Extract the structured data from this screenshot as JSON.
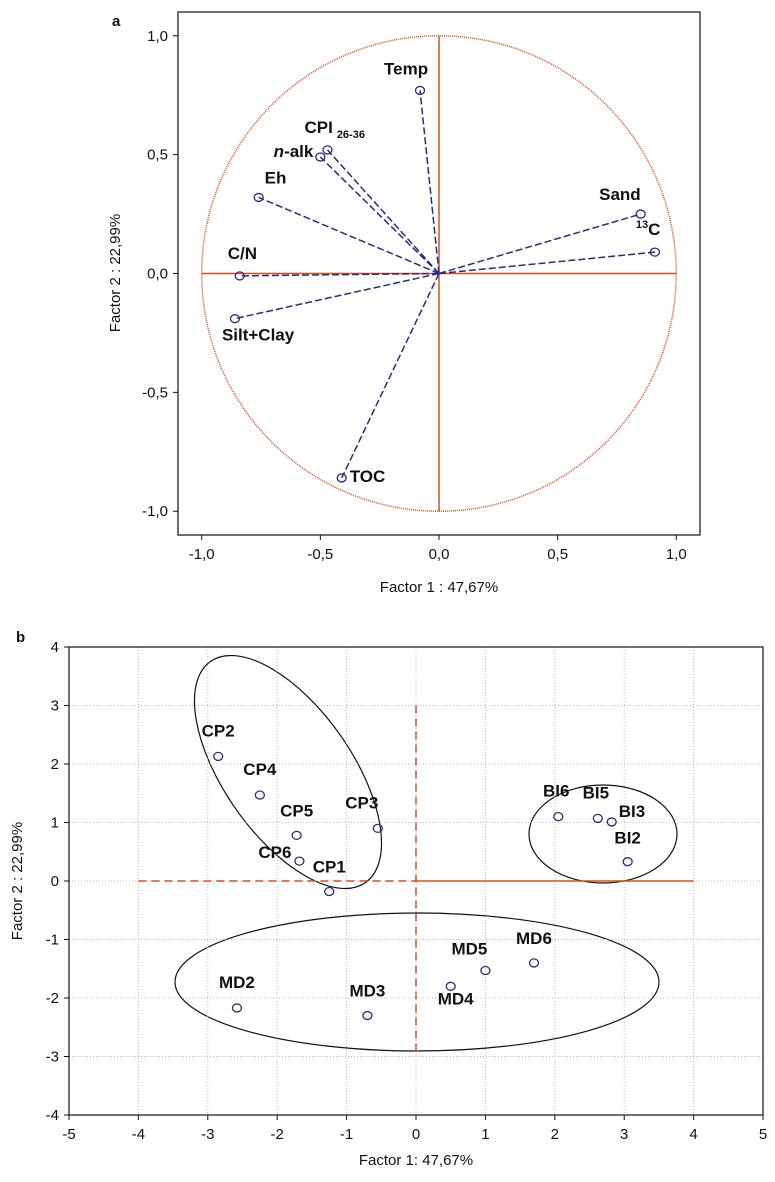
{
  "chart_data": [
    {
      "type": "scatter",
      "panel_label": "a",
      "x_label": "Factor 1 : 47,67%",
      "y_label": "Factor 2 : 22,99%",
      "xlim": [
        -1.1,
        1.1
      ],
      "ylim": [
        -1.1,
        1.1
      ],
      "xticks": [
        {
          "value": -1,
          "label": "-1,0"
        },
        {
          "value": -0.5,
          "label": "-0,5"
        },
        {
          "value": 0,
          "label": "0,0"
        },
        {
          "value": 0.5,
          "label": "0,5"
        },
        {
          "value": 1,
          "label": "1,0"
        }
      ],
      "yticks": [
        {
          "value": -1,
          "label": "-1,0"
        },
        {
          "value": -0.5,
          "label": "-0,5"
        },
        {
          "value": 0,
          "label": "0,0"
        },
        {
          "value": 0.5,
          "label": "0,5"
        },
        {
          "value": 1,
          "label": "1,0"
        }
      ],
      "grid": false,
      "arrows_from_origin": true,
      "unit_circle": true,
      "color": "#2b2b7c",
      "axis_color": "#d4501e",
      "points": [
        {
          "name": "Temp",
          "x": -0.08,
          "y": 0.77
        },
        {
          "name": "CPI",
          "sub": "26-36",
          "x": -0.47,
          "y": 0.52
        },
        {
          "name": "-alk",
          "italic": "n",
          "x": -0.5,
          "y": 0.49
        },
        {
          "name": "Eh",
          "x": -0.76,
          "y": 0.32
        },
        {
          "name": "C/N",
          "x": -0.84,
          "y": -0.01
        },
        {
          "name": "Silt+Clay",
          "x": -0.86,
          "y": -0.19
        },
        {
          "name": "TOC",
          "x": -0.41,
          "y": -0.86
        },
        {
          "name": "Sand",
          "x": 0.85,
          "y": 0.25
        },
        {
          "name": "C",
          "sup": "13",
          "x": 0.91,
          "y": 0.09
        }
      ]
    },
    {
      "type": "scatter",
      "panel_label": "b",
      "x_label": "Factor 1: 47,67%",
      "y_label": "Factor 2 : 22,99%",
      "xlim": [
        -5,
        5
      ],
      "ylim": [
        -4,
        4
      ],
      "xticks": [
        -5,
        -4,
        -3,
        -2,
        -1,
        0,
        1,
        2,
        3,
        4,
        5
      ],
      "yticks": [
        -4,
        -3,
        -2,
        -1,
        0,
        1,
        2,
        3,
        4
      ],
      "grid": true,
      "arrows_from_origin": false,
      "unit_circle": false,
      "color": "#2b2b7c",
      "axis_color": "#d4501e",
      "points": [
        {
          "name": "CP2",
          "x": -2.85,
          "y": 2.13
        },
        {
          "name": "CP4",
          "x": -2.25,
          "y": 1.47
        },
        {
          "name": "CP5",
          "x": -1.72,
          "y": 0.78
        },
        {
          "name": "CP3",
          "x": -0.55,
          "y": 0.9
        },
        {
          "name": "CP6",
          "x": -1.68,
          "y": 0.34
        },
        {
          "name": "CP1",
          "x": -1.25,
          "y": -0.18
        },
        {
          "name": "BI6",
          "x": 2.05,
          "y": 1.1
        },
        {
          "name": "BI5",
          "x": 2.62,
          "y": 1.07
        },
        {
          "name": "BI3",
          "x": 2.82,
          "y": 1.01
        },
        {
          "name": "BI2",
          "x": 3.05,
          "y": 0.33
        },
        {
          "name": "MD2",
          "x": -2.58,
          "y": -2.17
        },
        {
          "name": "MD3",
          "x": -0.7,
          "y": -2.3
        },
        {
          "name": "MD4",
          "x": 0.5,
          "y": -1.8
        },
        {
          "name": "MD5",
          "x": 1.0,
          "y": -1.53
        },
        {
          "name": "MD6",
          "x": 1.7,
          "y": -1.4
        }
      ]
    }
  ]
}
